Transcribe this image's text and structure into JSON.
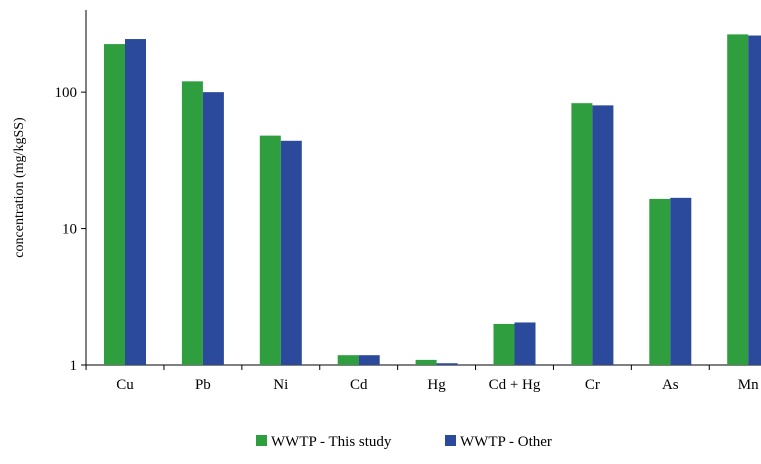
{
  "chart_data": {
    "type": "bar",
    "scale": "log",
    "ylabel": "concentration (mg/kgSS)",
    "xlabel": "",
    "ylim": [
      1,
      400
    ],
    "yticks": [
      1,
      10,
      100
    ],
    "ytick_labels": [
      "1",
      "10",
      "100"
    ],
    "grid": false,
    "legend_position": "bottom",
    "categories": [
      "Cu",
      "Pb",
      "Ni",
      "Cd",
      "Hg",
      "Cd + Hg",
      "Cr",
      "As",
      "Mn"
    ],
    "series": [
      {
        "name": "WWTP - This study",
        "color": "#2e9e3f",
        "values": [
          225,
          120,
          48,
          1.18,
          1.09,
          2.0,
          83,
          16.5,
          265
        ]
      },
      {
        "name": "WWTP - Other",
        "color": "#2b4a9c",
        "values": [
          245,
          100,
          44,
          1.18,
          1.03,
          2.05,
          80,
          16.8,
          260
        ]
      }
    ]
  }
}
